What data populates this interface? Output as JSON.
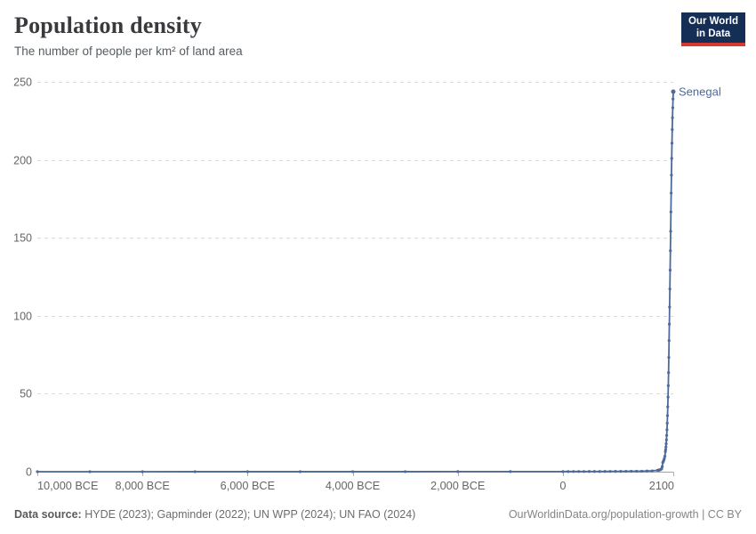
{
  "header": {
    "title": "Population density",
    "subtitle": "The number of people per km² of land area"
  },
  "logo": {
    "line1": "Our World",
    "line2": "in Data"
  },
  "footer": {
    "source_label": "Data source:",
    "source_text": " HYDE (2023); Gapminder (2022); UN WPP (2024); UN FAO (2024)",
    "link_text": "OurWorldinData.org/population-growth | CC BY"
  },
  "chart_data": {
    "type": "line",
    "title": "Population density",
    "ylabel": "",
    "xlabel": "",
    "grid": true,
    "xlim": [
      -10000,
      2100
    ],
    "ylim": [
      0,
      250
    ],
    "y_ticks": [
      0,
      50,
      100,
      150,
      200,
      250
    ],
    "x_ticks": [
      {
        "value": -10000,
        "label": "10,000 BCE",
        "anchor": "start"
      },
      {
        "value": -8000,
        "label": "8,000 BCE",
        "anchor": "middle"
      },
      {
        "value": -6000,
        "label": "6,000 BCE",
        "anchor": "middle"
      },
      {
        "value": -4000,
        "label": "4,000 BCE",
        "anchor": "middle"
      },
      {
        "value": -2000,
        "label": "2,000 BCE",
        "anchor": "middle"
      },
      {
        "value": 0,
        "label": "0",
        "anchor": "middle"
      },
      {
        "value": 2100,
        "label": "2100",
        "anchor": "end"
      }
    ],
    "colors": {
      "line": "#4c6a9c",
      "grid": "#dadada",
      "axis": "#a3a3a3",
      "tick": "#b0b0b0",
      "tick_text": "#666666"
    },
    "series": [
      {
        "name": "Senegal",
        "points": [
          [
            -10000,
            0.01
          ],
          [
            -9000,
            0.01
          ],
          [
            -8000,
            0.01
          ],
          [
            -7000,
            0.02
          ],
          [
            -6000,
            0.02
          ],
          [
            -5000,
            0.03
          ],
          [
            -4000,
            0.03
          ],
          [
            -3000,
            0.04
          ],
          [
            -2000,
            0.05
          ],
          [
            -1000,
            0.07
          ],
          [
            0,
            0.09
          ],
          [
            100,
            0.1
          ],
          [
            200,
            0.11
          ],
          [
            300,
            0.11
          ],
          [
            400,
            0.12
          ],
          [
            500,
            0.13
          ],
          [
            600,
            0.14
          ],
          [
            700,
            0.16
          ],
          [
            800,
            0.17
          ],
          [
            900,
            0.19
          ],
          [
            1000,
            0.2
          ],
          [
            1100,
            0.22
          ],
          [
            1200,
            0.25
          ],
          [
            1300,
            0.27
          ],
          [
            1400,
            0.3
          ],
          [
            1500,
            0.33
          ],
          [
            1600,
            0.41
          ],
          [
            1700,
            0.55
          ],
          [
            1800,
            0.9
          ],
          [
            1810,
            0.95
          ],
          [
            1820,
            1.0
          ],
          [
            1830,
            1.08
          ],
          [
            1840,
            1.16
          ],
          [
            1850,
            1.27
          ],
          [
            1860,
            1.42
          ],
          [
            1870,
            1.62
          ],
          [
            1880,
            1.93
          ],
          [
            1890,
            3.3
          ],
          [
            1900,
            5.85
          ],
          [
            1910,
            6.56
          ],
          [
            1920,
            7.36
          ],
          [
            1930,
            8.52
          ],
          [
            1940,
            9.96
          ],
          [
            1950,
            12.9
          ],
          [
            1955,
            14.2
          ],
          [
            1960,
            15.9
          ],
          [
            1965,
            17.9
          ],
          [
            1970,
            20.4
          ],
          [
            1975,
            23.3
          ],
          [
            1980,
            26.9
          ],
          [
            1985,
            31.1
          ],
          [
            1990,
            36.0
          ],
          [
            1995,
            41.6
          ],
          [
            2000,
            47.9
          ],
          [
            2005,
            55.2
          ],
          [
            2010,
            63.6
          ],
          [
            2015,
            73.3
          ],
          [
            2020,
            84.1
          ],
          [
            2025,
            94.6
          ],
          [
            2030,
            105.6
          ],
          [
            2035,
            117.2
          ],
          [
            2040,
            129.3
          ],
          [
            2045,
            141.7
          ],
          [
            2050,
            154.2
          ],
          [
            2055,
            166.6
          ],
          [
            2060,
            178.7
          ],
          [
            2065,
            190.2
          ],
          [
            2070,
            200.9
          ],
          [
            2075,
            210.7
          ],
          [
            2080,
            219.4
          ],
          [
            2085,
            227.0
          ],
          [
            2090,
            233.4
          ],
          [
            2095,
            239.0
          ],
          [
            2100,
            243.7
          ]
        ]
      }
    ]
  }
}
